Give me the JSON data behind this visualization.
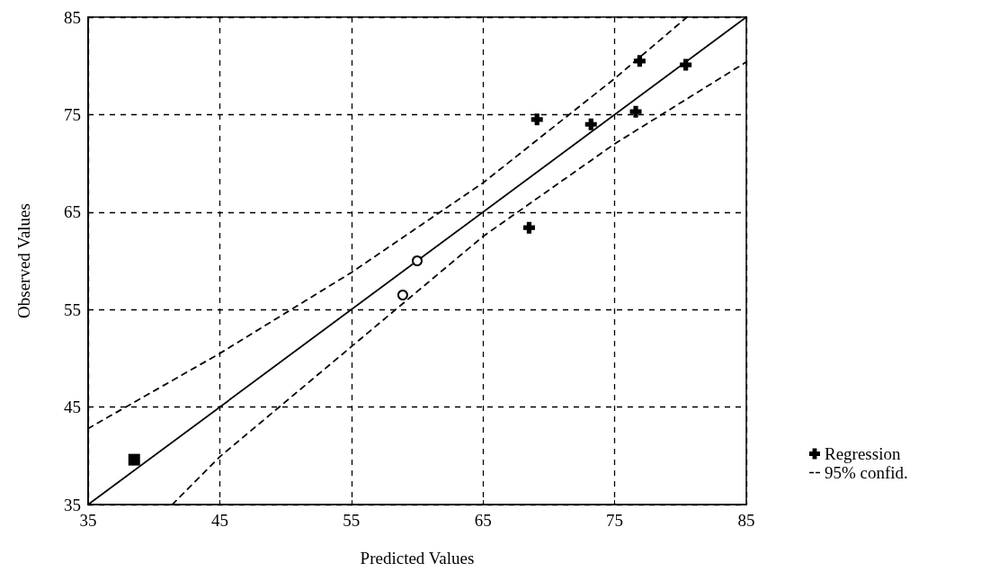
{
  "chart_data": {
    "type": "scatter",
    "xlabel": "Predicted Values",
    "ylabel": "Observed Values",
    "xlim": [
      35,
      85
    ],
    "ylim": [
      35,
      85
    ],
    "xticks": [
      35,
      45,
      55,
      65,
      75,
      85
    ],
    "yticks": [
      35,
      45,
      55,
      65,
      75,
      85
    ],
    "grid": true,
    "legend": "bottom right",
    "series": [
      {
        "marker": "square",
        "color": "#000000",
        "x": [
          38.5
        ],
        "values": [
          39.6
        ]
      },
      {
        "marker": "circle",
        "color": "#000000",
        "x": [
          58.9,
          60.0
        ],
        "values": [
          56.5,
          60.0
        ]
      },
      {
        "marker": "cross",
        "name": "Regression",
        "color": "#000000",
        "x": [
          68.5,
          69.1,
          73.2,
          76.6,
          76.9,
          80.4
        ],
        "values": [
          63.4,
          74.5,
          74.0,
          75.3,
          80.5,
          80.1
        ]
      },
      {
        "type": "line",
        "marker": "none",
        "line_style": "solid",
        "color": "#000000",
        "x": [
          35,
          85
        ],
        "values": [
          35,
          85
        ]
      },
      {
        "type": "line",
        "marker": "none",
        "line_style": "dashed",
        "name": "95% confid.",
        "color": "#000000",
        "x": [
          35,
          45,
          55,
          65,
          75,
          80.5
        ],
        "values": [
          42.8,
          50.5,
          58.8,
          68.0,
          78.7,
          85
        ]
      },
      {
        "type": "line",
        "marker": "none",
        "line_style": "dashed",
        "color": "#000000",
        "x": [
          41.4,
          45,
          55,
          65,
          75,
          85
        ],
        "values": [
          35,
          39.9,
          51.2,
          62.5,
          72.0,
          80.4
        ]
      }
    ]
  }
}
